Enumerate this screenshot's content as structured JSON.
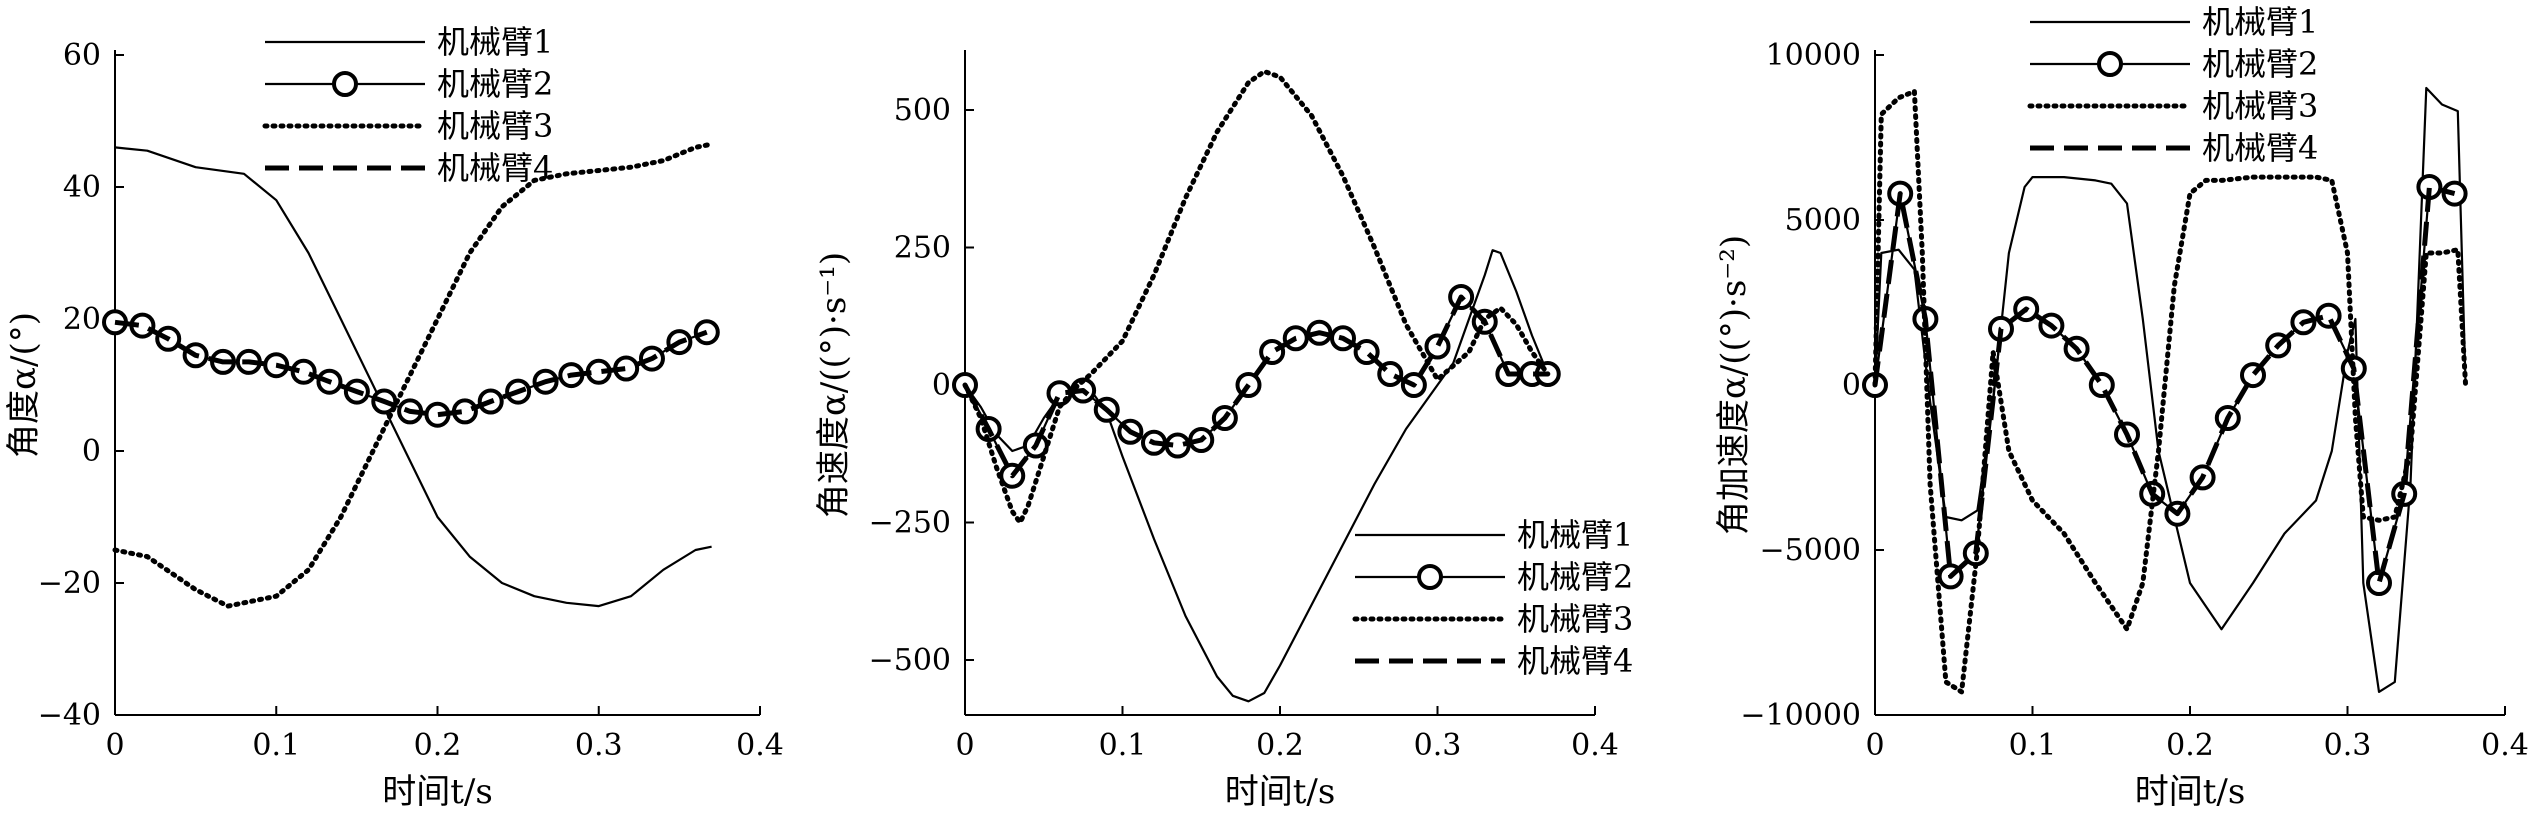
{
  "chart_data": [
    {
      "type": "line",
      "ylabel": "角度α/(°)",
      "xlabel": "时间t/s",
      "xlim": [
        0,
        0.4
      ],
      "ylim": [
        -40,
        60
      ],
      "xticks": [
        0,
        0.1,
        0.2,
        0.3,
        0.4
      ],
      "yticks": [
        -40,
        -20,
        0,
        20,
        40,
        60
      ],
      "legend": "top-center",
      "series": [
        {
          "name": "机械臂1",
          "style": "solid",
          "marker": "none",
          "x": [
            0,
            0.02,
            0.05,
            0.08,
            0.1,
            0.12,
            0.14,
            0.16,
            0.18,
            0.2,
            0.22,
            0.24,
            0.26,
            0.28,
            0.3,
            0.32,
            0.34,
            0.36,
            0.37
          ],
          "y": [
            46,
            45.5,
            43,
            42,
            38,
            30,
            20,
            10,
            0,
            -10,
            -16,
            -20,
            -22,
            -23,
            -23.5,
            -22,
            -18,
            -15,
            -14.5
          ]
        },
        {
          "name": "机械臂2",
          "style": "solid",
          "marker": "circle",
          "x": [
            0,
            0.017,
            0.033,
            0.05,
            0.067,
            0.083,
            0.1,
            0.117,
            0.133,
            0.15,
            0.167,
            0.183,
            0.2,
            0.217,
            0.233,
            0.25,
            0.267,
            0.283,
            0.3,
            0.317,
            0.333,
            0.35,
            0.367
          ],
          "y": [
            19.5,
            19,
            17,
            14.5,
            13.5,
            13.5,
            13,
            12,
            10.5,
            9,
            7.5,
            6,
            5.5,
            6,
            7.5,
            9,
            10.5,
            11.5,
            12,
            12.5,
            14,
            16.5,
            18
          ]
        },
        {
          "name": "机械臂3",
          "style": "dotted",
          "marker": "none",
          "x": [
            0,
            0.02,
            0.05,
            0.07,
            0.1,
            0.12,
            0.14,
            0.16,
            0.18,
            0.2,
            0.22,
            0.24,
            0.26,
            0.28,
            0.3,
            0.32,
            0.34,
            0.36,
            0.37
          ],
          "y": [
            -15,
            -16,
            -21,
            -23.5,
            -22,
            -18,
            -10,
            0,
            10,
            20,
            30,
            37,
            41,
            42,
            42.5,
            43,
            44,
            46,
            46.5
          ]
        },
        {
          "name": "机械臂4",
          "style": "dashed",
          "marker": "none",
          "x": [
            0,
            0.017,
            0.033,
            0.05,
            0.067,
            0.083,
            0.1,
            0.117,
            0.133,
            0.15,
            0.167,
            0.183,
            0.2,
            0.217,
            0.233,
            0.25,
            0.267,
            0.283,
            0.3,
            0.317,
            0.333,
            0.35,
            0.367
          ],
          "y": [
            19.5,
            19,
            17,
            14.5,
            13.5,
            13.5,
            13,
            12,
            10.5,
            9,
            7.5,
            6,
            5.5,
            6,
            7.5,
            9,
            10.5,
            11.5,
            12,
            12.5,
            14,
            16.5,
            18
          ]
        }
      ]
    },
    {
      "type": "line",
      "ylabel": "角速度α/((°)·s⁻¹)",
      "xlabel": "时间t/s",
      "xlim": [
        0,
        0.4
      ],
      "ylim": [
        -600,
        600
      ],
      "xticks": [
        0,
        0.1,
        0.2,
        0.3,
        0.4
      ],
      "yticks": [
        -500,
        -250,
        0,
        250,
        500
      ],
      "legend": "bottom-right",
      "series": [
        {
          "name": "机械臂1",
          "style": "solid",
          "marker": "none",
          "x": [
            0,
            0.01,
            0.02,
            0.03,
            0.04,
            0.05,
            0.06,
            0.07,
            0.08,
            0.09,
            0.1,
            0.12,
            0.14,
            0.16,
            0.17,
            0.18,
            0.19,
            0.2,
            0.22,
            0.24,
            0.26,
            0.28,
            0.3,
            0.31,
            0.32,
            0.33,
            0.335,
            0.34,
            0.35,
            0.36,
            0.37
          ],
          "y": [
            0,
            -40,
            -90,
            -120,
            -110,
            -60,
            -20,
            -5,
            -10,
            -50,
            -130,
            -280,
            -420,
            -530,
            -565,
            -575,
            -560,
            -510,
            -400,
            -290,
            -180,
            -80,
            0,
            40,
            120,
            200,
            245,
            240,
            170,
            90,
            20
          ]
        },
        {
          "name": "机械臂2",
          "style": "solid",
          "marker": "circle",
          "x": [
            0,
            0.015,
            0.03,
            0.045,
            0.06,
            0.075,
            0.09,
            0.105,
            0.12,
            0.135,
            0.15,
            0.165,
            0.18,
            0.195,
            0.21,
            0.225,
            0.24,
            0.255,
            0.27,
            0.285,
            0.3,
            0.315,
            0.33,
            0.345,
            0.36,
            0.37
          ],
          "y": [
            0,
            -80,
            -165,
            -110,
            -15,
            -10,
            -45,
            -85,
            -105,
            -110,
            -100,
            -60,
            0,
            60,
            85,
            95,
            85,
            60,
            20,
            0,
            70,
            160,
            115,
            20,
            20,
            20
          ]
        },
        {
          "name": "机械臂3",
          "style": "dotted",
          "marker": "none",
          "x": [
            0,
            0.01,
            0.02,
            0.03,
            0.035,
            0.04,
            0.05,
            0.06,
            0.07,
            0.08,
            0.1,
            0.12,
            0.14,
            0.16,
            0.18,
            0.19,
            0.2,
            0.22,
            0.24,
            0.26,
            0.28,
            0.3,
            0.32,
            0.33,
            0.34,
            0.35,
            0.36,
            0.37
          ],
          "y": [
            0,
            -60,
            -150,
            -230,
            -250,
            -220,
            -130,
            -40,
            -5,
            20,
            80,
            200,
            340,
            460,
            550,
            570,
            560,
            490,
            380,
            250,
            110,
            10,
            60,
            120,
            140,
            110,
            60,
            20
          ]
        },
        {
          "name": "机械臂4",
          "style": "dashed",
          "marker": "none",
          "x": [
            0,
            0.015,
            0.03,
            0.045,
            0.06,
            0.075,
            0.09,
            0.105,
            0.12,
            0.135,
            0.15,
            0.165,
            0.18,
            0.195,
            0.21,
            0.225,
            0.24,
            0.255,
            0.27,
            0.285,
            0.3,
            0.315,
            0.33,
            0.345,
            0.36,
            0.37
          ],
          "y": [
            0,
            -80,
            -165,
            -110,
            -15,
            -10,
            -45,
            -85,
            -105,
            -110,
            -100,
            -60,
            0,
            60,
            85,
            95,
            85,
            60,
            20,
            0,
            70,
            160,
            115,
            20,
            20,
            20
          ]
        }
      ]
    },
    {
      "type": "line",
      "ylabel": "角加速度α/((°)·s⁻²)",
      "xlabel": "时间t/s",
      "xlim": [
        0,
        0.4
      ],
      "ylim": [
        -10000,
        10000
      ],
      "xticks": [
        0,
        0.1,
        0.2,
        0.3,
        0.4
      ],
      "yticks": [
        -10000,
        -5000,
        0,
        5000,
        10000
      ],
      "legend": "top-center",
      "series": [
        {
          "name": "机械臂1",
          "style": "solid",
          "marker": "none",
          "x": [
            0,
            0.004,
            0.015,
            0.025,
            0.035,
            0.045,
            0.055,
            0.065,
            0.075,
            0.085,
            0.095,
            0.1,
            0.12,
            0.14,
            0.15,
            0.16,
            0.17,
            0.18,
            0.2,
            0.22,
            0.24,
            0.26,
            0.28,
            0.29,
            0.3,
            0.305,
            0.31,
            0.32,
            0.33,
            0.34,
            0.35,
            0.36,
            0.37,
            0.375
          ],
          "y": [
            0,
            4000,
            4100,
            3500,
            -500,
            -4000,
            -4100,
            -3800,
            -500,
            4000,
            6000,
            6300,
            6300,
            6200,
            6100,
            5500,
            2000,
            -2000,
            -6000,
            -7400,
            -6000,
            -4500,
            -3500,
            -2000,
            1000,
            2000,
            -6000,
            -9300,
            -9000,
            -3000,
            9000,
            8500,
            8300,
            0
          ]
        },
        {
          "name": "机械臂2",
          "style": "solid",
          "marker": "circle",
          "x": [
            0,
            0.016,
            0.032,
            0.048,
            0.064,
            0.08,
            0.096,
            0.112,
            0.128,
            0.144,
            0.16,
            0.176,
            0.192,
            0.208,
            0.224,
            0.24,
            0.256,
            0.272,
            0.288,
            0.304,
            0.32,
            0.336,
            0.352,
            0.368
          ],
          "y": [
            0,
            5800,
            2000,
            -5800,
            -5100,
            1700,
            2300,
            1800,
            1100,
            0,
            -1500,
            -3300,
            -3900,
            -2800,
            -1000,
            300,
            1200,
            1900,
            2100,
            500,
            -6000,
            -3300,
            6000,
            5800
          ]
        },
        {
          "name": "机械臂3",
          "style": "dotted",
          "marker": "none",
          "x": [
            0,
            0.004,
            0.015,
            0.025,
            0.03,
            0.035,
            0.045,
            0.055,
            0.065,
            0.075,
            0.085,
            0.1,
            0.12,
            0.14,
            0.16,
            0.17,
            0.18,
            0.19,
            0.2,
            0.21,
            0.22,
            0.24,
            0.26,
            0.28,
            0.29,
            0.3,
            0.305,
            0.31,
            0.32,
            0.33,
            0.34,
            0.35,
            0.36,
            0.37,
            0.375
          ],
          "y": [
            0,
            8200,
            8700,
            8900,
            4000,
            -3000,
            -9000,
            -9300,
            -5000,
            1000,
            -2000,
            -3500,
            -4500,
            -6000,
            -7400,
            -6000,
            -2000,
            3000,
            5800,
            6200,
            6200,
            6300,
            6300,
            6300,
            6200,
            4000,
            -1000,
            -4000,
            -4100,
            -4000,
            -2000,
            4000,
            4000,
            4100,
            0
          ]
        },
        {
          "name": "机械臂4",
          "style": "dashed",
          "marker": "none",
          "x": [
            0,
            0.016,
            0.032,
            0.048,
            0.064,
            0.08,
            0.096,
            0.112,
            0.128,
            0.144,
            0.16,
            0.176,
            0.192,
            0.208,
            0.224,
            0.24,
            0.256,
            0.272,
            0.288,
            0.304,
            0.32,
            0.336,
            0.352,
            0.368
          ],
          "y": [
            0,
            5800,
            2000,
            -5800,
            -5100,
            1700,
            2300,
            1800,
            1100,
            0,
            -1500,
            -3300,
            -3900,
            -2800,
            -1000,
            300,
            1200,
            1900,
            2100,
            500,
            -6000,
            -3300,
            6000,
            5800
          ]
        }
      ]
    }
  ]
}
